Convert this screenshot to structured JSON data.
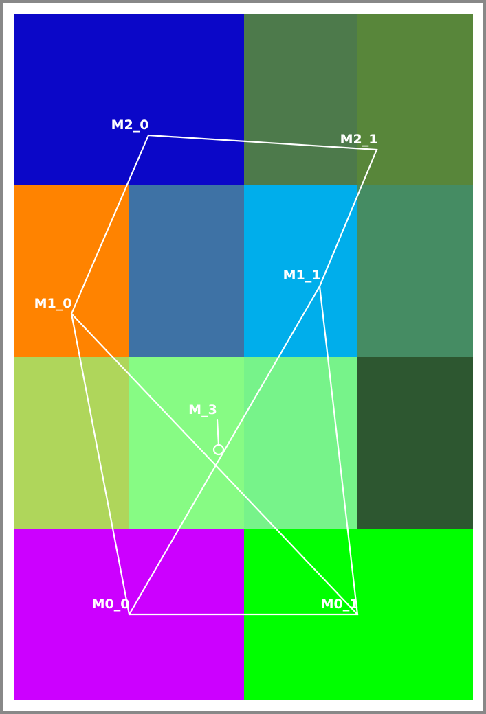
{
  "colors": {
    "frame": "#888888",
    "line": "#ffffff",
    "cells": {
      "r0c0": "#0b07c8",
      "r0c1": "#0b07c8",
      "r0c2": "#4d7a4b",
      "r0c3": "#58863a",
      "r1c0": "#ff8300",
      "r1c1": "#3e72a5",
      "r1c2": "#00aeeb",
      "r1c3": "#458c63",
      "r2c0": "#afd65b",
      "r2c1": "#87fb84",
      "r2c2": "#77f38a",
      "r2c3": "#2d5730",
      "r3c0": "#cc00ff",
      "r3c1": "#cc00ff",
      "r3c2": "#00ff00",
      "r3c3": "#00ff00"
    }
  },
  "labels": {
    "m2_0": "M2_0",
    "m2_1": "M2_1",
    "m1_0": "M1_0",
    "m1_1": "M1_1",
    "m_3": "M_3",
    "m0_0": "M0_0",
    "m0_1": "M0_1"
  }
}
